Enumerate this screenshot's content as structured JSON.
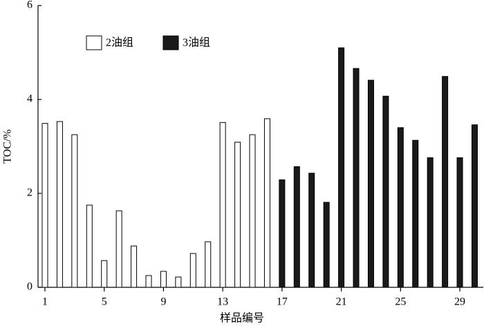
{
  "chart_data": {
    "type": "bar",
    "x_label": "样品编号",
    "y_label": "TOC/%",
    "categories": [
      "1",
      null,
      null,
      null,
      "5",
      null,
      null,
      null,
      "9",
      null,
      null,
      null,
      "13",
      null,
      null,
      null,
      "17",
      null,
      null,
      null,
      "21",
      null,
      null,
      null,
      "25",
      null,
      null,
      null,
      "29",
      null
    ],
    "series": [
      {
        "name": "2油组",
        "color": "#ffffff",
        "values": [
          3.49,
          3.53,
          3.25,
          1.75,
          0.57,
          1.63,
          0.88,
          0.25,
          0.34,
          0.22,
          0.72,
          0.97,
          3.51,
          3.09,
          3.25,
          3.59,
          null,
          null,
          null,
          null,
          null,
          null,
          null,
          null,
          null,
          null,
          null,
          null,
          null,
          null
        ]
      },
      {
        "name": "3油组",
        "color": "#1a1a1a",
        "values": [
          null,
          null,
          null,
          null,
          null,
          null,
          null,
          null,
          null,
          null,
          null,
          null,
          null,
          null,
          null,
          null,
          2.29,
          2.57,
          2.43,
          1.81,
          5.1,
          4.66,
          4.41,
          4.07,
          3.4,
          3.13,
          2.76,
          4.49,
          2.76,
          3.46
        ]
      }
    ],
    "ylim": [
      0,
      6
    ],
    "yticks": [
      0,
      2,
      4,
      6
    ],
    "legend": "top-left"
  }
}
